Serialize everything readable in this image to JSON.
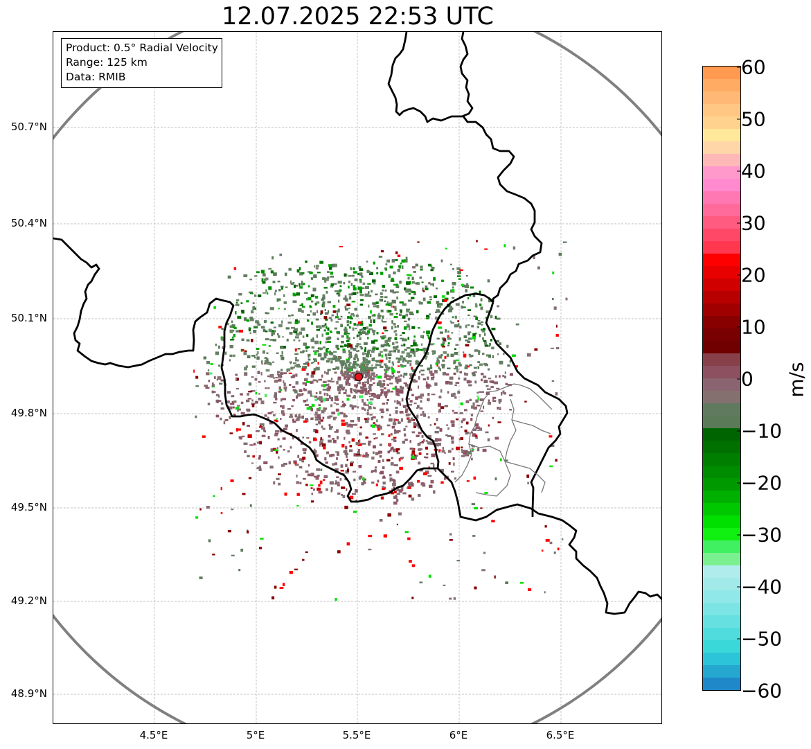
{
  "title": "12.07.2025 22:53 UTC",
  "info_box": {
    "product": "Product: 0.5° Radial Velocity",
    "range": "Range: 125 km",
    "data_source": "Data: RMIB"
  },
  "map": {
    "lat_ticks": [
      "50.7°N",
      "50.4°N",
      "50.1°N",
      "49.8°N",
      "49.5°N",
      "49.2°N",
      "48.9°N"
    ],
    "lon_ticks": [
      "4.5°E",
      "5°E",
      "5.5°E",
      "6°E",
      "6.5°E"
    ],
    "radar_site": {
      "lon": 5.5,
      "lat": 49.915
    },
    "range_circle_km": 125,
    "colors": {
      "range_circle": "#808080",
      "border": "#000000",
      "radar_marker": "#e8141c",
      "grid": "#b0b0b0"
    }
  },
  "colorbar": {
    "unit": "m/s",
    "min": -60,
    "max": 60,
    "tick_labels": [
      "60",
      "50",
      "40",
      "30",
      "20",
      "10",
      "0",
      "−10",
      "−20",
      "−30",
      "−40",
      "−50",
      "−60"
    ],
    "bands_top_to_bottom": [
      "#ff9a50",
      "#ffab64",
      "#ffb876",
      "#ffc684",
      "#ffd28e",
      "#ffe89a",
      "#ffd6a8",
      "#ffb8b8",
      "#ff99cc",
      "#ff8ad0",
      "#ff78b4",
      "#ff6a9a",
      "#ff5a80",
      "#ff4868",
      "#ff3850",
      "#ff0000",
      "#e80000",
      "#d00000",
      "#b80000",
      "#a00000",
      "#880000",
      "#780000",
      "#700000",
      "#884048",
      "#8c5060",
      "#8a6470",
      "#857070",
      "#607a60",
      "#5a7a58",
      "#006400",
      "#007000",
      "#007e00",
      "#008c00",
      "#009a00",
      "#00b000",
      "#00c800",
      "#00e000",
      "#10f010",
      "#40f060",
      "#7af090",
      "#b0ecec",
      "#a2eaea",
      "#90e8e8",
      "#7ce4e4",
      "#66e0e0",
      "#50dcdc",
      "#3ad8d8",
      "#2cc4d8",
      "#24a8d0",
      "#1e88c8"
    ]
  }
}
